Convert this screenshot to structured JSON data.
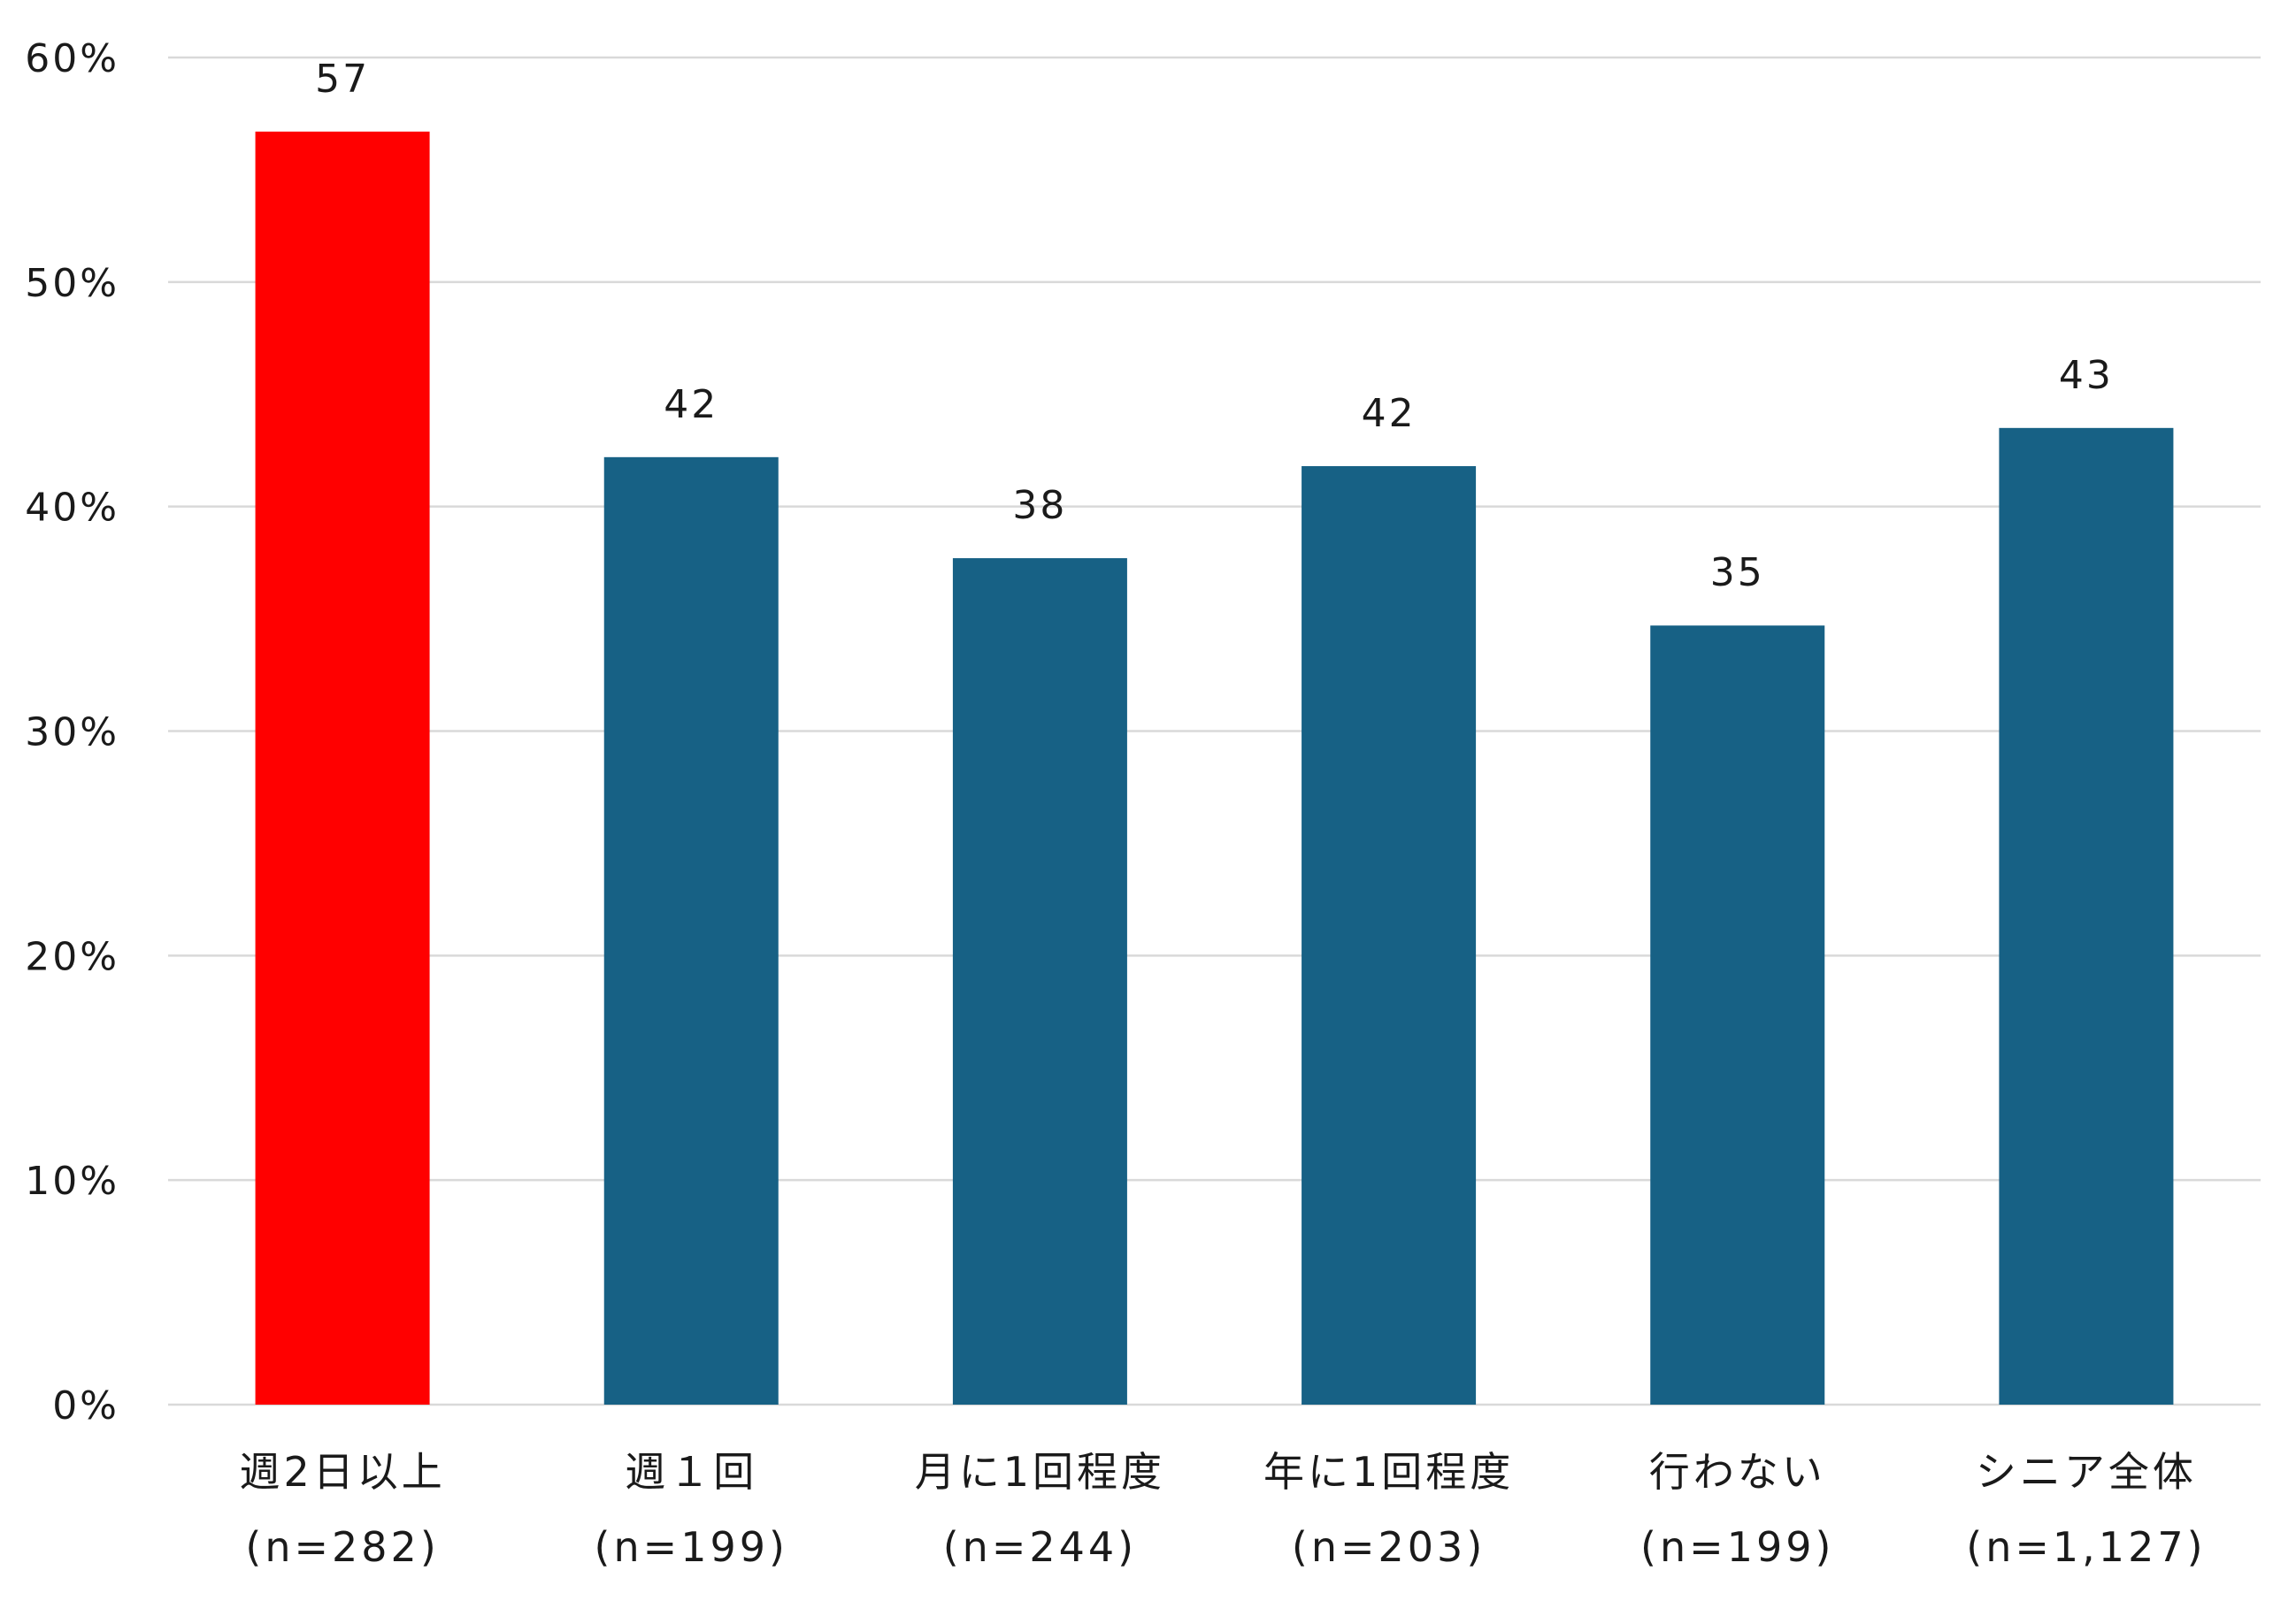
{
  "chart_data": {
    "type": "bar",
    "title": "",
    "xlabel": "",
    "ylabel": "",
    "ylim": [
      0,
      60
    ],
    "y_tick_values": [
      0,
      10,
      20,
      30,
      40,
      50,
      60
    ],
    "y_tick_labels": [
      "0%",
      "10%",
      "20%",
      "30%",
      "40%",
      "50%",
      "60%"
    ],
    "grid": true,
    "legend": "none",
    "categories": [
      "週2日以上",
      "週１回",
      "月に1回程度",
      "年に1回程度",
      "行わない",
      "シニア全体"
    ],
    "category_sublabels": [
      "(n=282)",
      "(n=199)",
      "(n=244)",
      "(n=203)",
      "(n=199)",
      "(n=1,127)"
    ],
    "values": [
      56.7,
      42.2,
      37.7,
      41.8,
      34.7,
      43.5
    ],
    "data_labels": [
      "57",
      "42",
      "38",
      "42",
      "35",
      "43"
    ],
    "colors": {
      "highlight": "#ff0000",
      "default": "#176185",
      "gridline": "#d9d9d9"
    },
    "highlight_index": 0
  }
}
